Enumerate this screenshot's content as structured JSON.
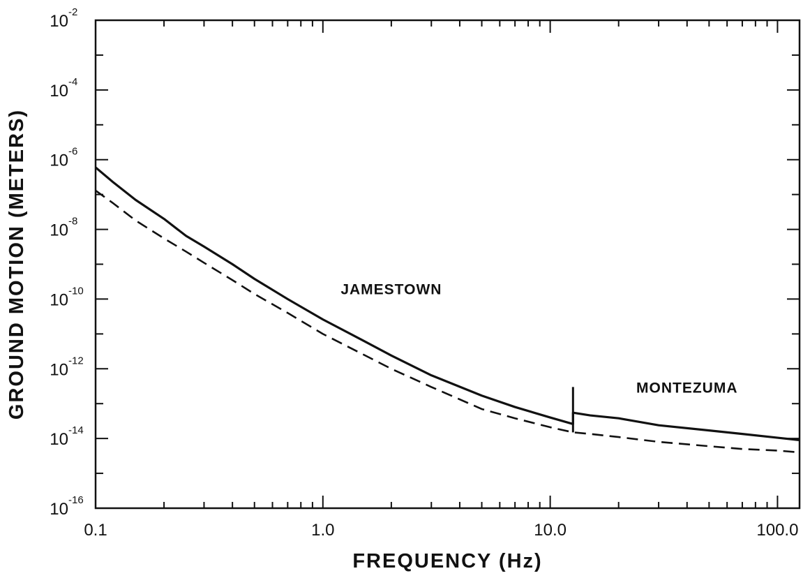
{
  "chart_data": {
    "type": "line",
    "title": "",
    "xlabel": "FREQUENCY  (Hz)",
    "ylabel": "GROUND MOTION (METERS)",
    "xscale": "log",
    "yscale": "log",
    "xlim": [
      0.1,
      125
    ],
    "ylim": [
      1e-16,
      0.01
    ],
    "x_ticks": [
      {
        "value": 0.1,
        "label": "0.1"
      },
      {
        "value": 1,
        "label": "1.0"
      },
      {
        "value": 10,
        "label": "10.0"
      },
      {
        "value": 100,
        "label": "100.0"
      }
    ],
    "y_ticks": [
      {
        "value": 0.01,
        "base": "10",
        "exp": "-2"
      },
      {
        "value": 0.0001,
        "base": "10",
        "exp": "-4"
      },
      {
        "value": 1e-06,
        "base": "10",
        "exp": "-6"
      },
      {
        "value": 1e-08,
        "base": "10",
        "exp": "-8"
      },
      {
        "value": 1e-10,
        "base": "10",
        "exp": "-10"
      },
      {
        "value": 1e-12,
        "base": "10",
        "exp": "-12"
      },
      {
        "value": 1e-14,
        "base": "10",
        "exp": "-14"
      },
      {
        "value": 1e-16,
        "base": "10",
        "exp": "-16"
      }
    ],
    "grid": false,
    "annotations": [
      {
        "text": "JAMESTOWN",
        "x": 2.0,
        "y": 2e-10
      },
      {
        "text": "MONTEZUMA",
        "x": 40,
        "y": 3e-13
      }
    ],
    "site_boundary": {
      "x": 12.6,
      "y_range": [
        1.5e-14,
        3e-13
      ]
    },
    "series": [
      {
        "style": "solid",
        "x": [
          0.1,
          0.12,
          0.15,
          0.2,
          0.25,
          0.3,
          0.4,
          0.5,
          0.7,
          1.0,
          1.5,
          2.0,
          3.0,
          5.0,
          7.0,
          10.0,
          12.6,
          12.6,
          15,
          20,
          30,
          50,
          70,
          100,
          125
        ],
        "y": [
          6e-07,
          2.2e-07,
          7e-08,
          2e-08,
          6.5e-09,
          3.2e-09,
          1e-09,
          3.8e-10,
          1e-10,
          2.6e-11,
          6.5e-12,
          2.4e-12,
          6.5e-13,
          1.7e-13,
          8e-14,
          4e-14,
          2.6e-14,
          5.5e-14,
          4.6e-14,
          3.8e-14,
          2.4e-14,
          1.7e-14,
          1.35e-14,
          1.05e-14,
          9e-15
        ]
      },
      {
        "style": "dashed",
        "x": [
          0.1,
          0.12,
          0.15,
          0.2,
          0.25,
          0.3,
          0.4,
          0.5,
          0.7,
          1.0,
          1.5,
          2.0,
          3.0,
          5.0,
          7.0,
          10.0,
          12.6,
          15,
          20,
          30,
          50,
          70,
          100,
          125
        ],
        "y": [
          1.3e-07,
          5.5e-08,
          1.8e-08,
          5.5e-09,
          2.3e-09,
          1.1e-09,
          3.5e-10,
          1.4e-10,
          4e-11,
          1e-11,
          2.6e-12,
          1e-12,
          3e-13,
          7e-14,
          3.8e-14,
          2.1e-14,
          1.5e-14,
          1.35e-14,
          1.1e-14,
          8e-15,
          6e-15,
          5e-15,
          4.5e-15,
          4e-15
        ]
      }
    ]
  }
}
